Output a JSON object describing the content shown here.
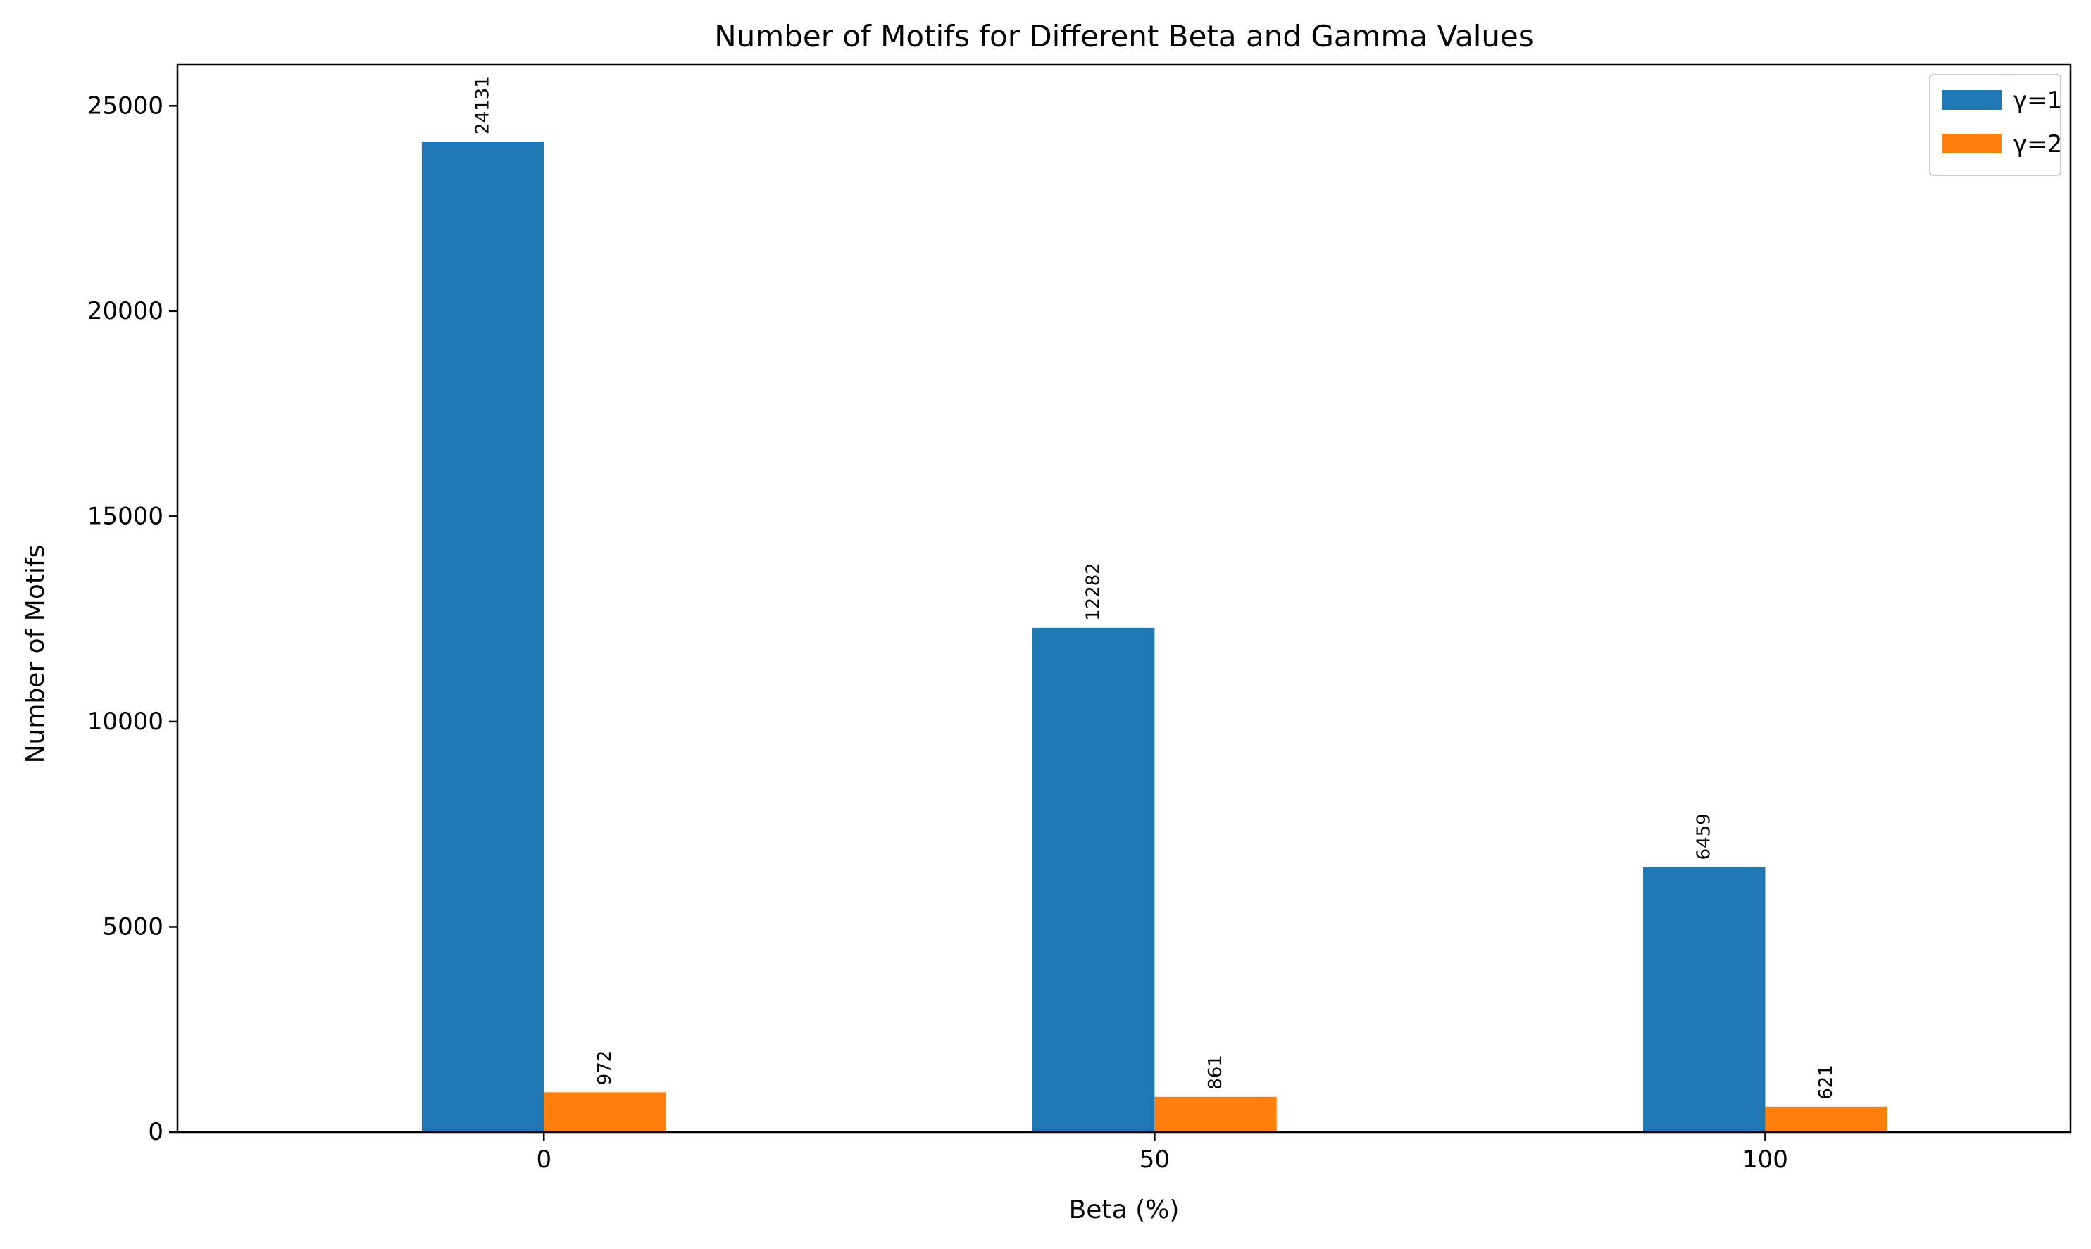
{
  "chart_data": {
    "type": "bar",
    "title": "Number of Motifs for Different Beta and Gamma Values",
    "xlabel": "Beta (%)",
    "ylabel": "Number of Motifs",
    "categories": [
      "0",
      "50",
      "100"
    ],
    "series": [
      {
        "name": "γ=1",
        "color": "#1f77b4",
        "values": [
          24131,
          12282,
          6459
        ]
      },
      {
        "name": "γ=2",
        "color": "#ff7f0e",
        "values": [
          972,
          861,
          621
        ]
      }
    ],
    "ylim": [
      0,
      26000
    ],
    "yticks": [
      0,
      5000,
      10000,
      15000,
      20000,
      25000
    ],
    "grid": false,
    "legend_position": "top-right"
  }
}
